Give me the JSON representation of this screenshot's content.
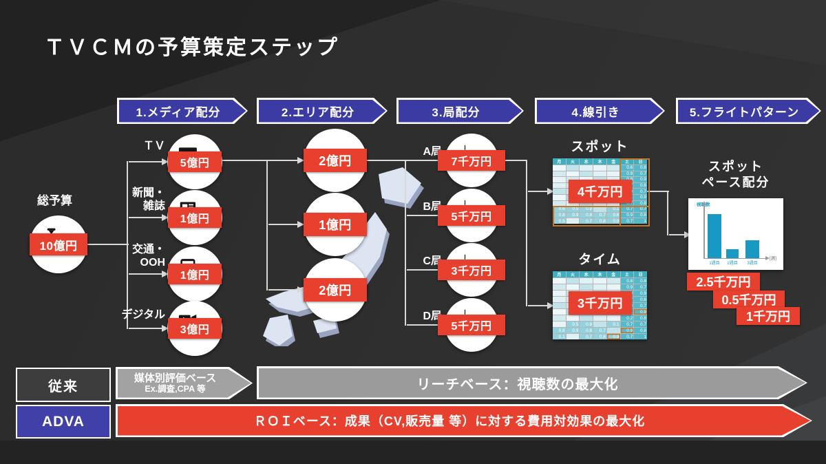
{
  "title": "ＴＶＣＭの予算策定ステップ",
  "steps": [
    "1.メディア配分",
    "2.エリア配分",
    "3.局配分",
    "4.線引き",
    "5.フライトパターン"
  ],
  "budget": {
    "label": "総予算",
    "amount": "10億円",
    "icon": "money-bag-icon"
  },
  "media": [
    {
      "label_lines": [
        "ＴＶ"
      ],
      "amount": "5億円",
      "icon": "tv-icon"
    },
    {
      "label_lines": [
        "新聞・",
        "雑誌"
      ],
      "amount": "1億円",
      "icon": "newspaper-icon"
    },
    {
      "label_lines": [
        "交通・",
        "OOH"
      ],
      "amount": "1億円",
      "icon": "bus-icon"
    },
    {
      "label_lines": [
        "デジタル"
      ],
      "amount": "3億円",
      "icon": "digital-icon"
    }
  ],
  "areas": [
    {
      "amount": "2億円"
    },
    {
      "amount": "1億円"
    },
    {
      "amount": "2億円"
    }
  ],
  "stations": [
    {
      "label": "A局",
      "amount": "7千万円",
      "icon": "broadcast-tower-icon"
    },
    {
      "label": "B局",
      "amount": "5千万円",
      "icon": "broadcast-tower-icon"
    },
    {
      "label": "C局",
      "amount": "3千万円",
      "icon": "broadcast-tower-icon"
    },
    {
      "label": "D局",
      "amount": "5千万円",
      "icon": "broadcast-tower-icon"
    }
  ],
  "spot_table": {
    "title": "スポット",
    "amount": "4千万円",
    "headers": [
      "月",
      "火",
      "水",
      "木",
      "金",
      "土",
      "日"
    ],
    "rows": [
      [
        "",
        "",
        "",
        "",
        "",
        "0.6",
        "0.8"
      ],
      [
        "",
        "",
        "",
        "",
        "",
        "0.9",
        "0.7"
      ],
      [
        "",
        "",
        "",
        "",
        "",
        "0.8",
        "0.9"
      ],
      [
        "",
        "",
        "",
        "",
        "",
        "0.7",
        "0.8"
      ],
      [
        "",
        "",
        "",
        "",
        "",
        "0.9",
        "0.7"
      ],
      [
        "",
        "",
        "",
        "",
        "",
        "1",
        "0.9"
      ],
      [
        "",
        "",
        "",
        "",
        "",
        "0.7",
        "0.8"
      ],
      [
        "0.6",
        "0.5",
        "0.8",
        "",
        "0.1",
        "0.7",
        "0.7"
      ],
      [
        "0.8",
        "0.9",
        "0.8",
        "0.7",
        "0.6",
        "0.9",
        "0.8"
      ],
      [
        "0.5",
        "",
        "0.7",
        "0.8",
        "0.9",
        "0.7",
        "1"
      ]
    ]
  },
  "time_table": {
    "title": "タイム",
    "amount": "3千万円",
    "headers": [
      "月",
      "火",
      "水",
      "木",
      "金",
      "土",
      "日"
    ],
    "rows": [
      [
        "",
        "",
        "",
        "",
        "",
        "0.8",
        "0.8"
      ],
      [
        "",
        "",
        "",
        "",
        "",
        "0.9",
        "0.7"
      ],
      [
        "",
        "",
        "",
        "",
        "",
        "0.8",
        "0.9"
      ],
      [
        "",
        "",
        "",
        "",
        "",
        "0.7",
        "0.8"
      ],
      [
        "",
        "",
        "",
        "",
        "",
        "0.9",
        "0.7"
      ],
      [
        "",
        "",
        "",
        "",
        "",
        "1",
        "0.9"
      ],
      [
        "",
        "",
        "",
        "",
        "",
        "0.2",
        "0.8"
      ],
      [
        "",
        "0.5",
        "0.8",
        "",
        "0.1",
        "0.7",
        "0.7"
      ],
      [
        "0.8",
        "0.9",
        "0.8",
        "0.7",
        "",
        "0.9",
        "0.8"
      ],
      [
        "0.1",
        "",
        "0.7",
        "0.8",
        "0.9",
        "0.7",
        "1"
      ]
    ],
    "highlight_cells": [
      [
        5,
        6
      ],
      [
        8,
        5
      ],
      [
        9,
        4
      ]
    ]
  },
  "pace": {
    "title_lines": [
      "スポット",
      "ペース配分"
    ],
    "badges": [
      "2.5千万円",
      "0.5千万円",
      "1千万円"
    ]
  },
  "chart_data": {
    "type": "bar",
    "title": "スポット ペース配分",
    "categories": [
      "1週目",
      "2週目",
      "3週目"
    ],
    "values": [
      2.5,
      0.5,
      1
    ],
    "unit": "千万円",
    "ylabel": "視聴数",
    "xlabel": "[週]",
    "ylim": [
      0,
      2.7
    ],
    "grid": false,
    "legend": "none",
    "bar_color": "#1899c4"
  },
  "legacy": {
    "label": "従来",
    "chevron_lines": [
      "媒体別評価ベース",
      "Ex.調査,CPA 等"
    ],
    "bar_text": "リーチベース：視聴数の最大化"
  },
  "adva": {
    "label": "ADVA",
    "bar_text": "ＲＯＩベース：成果（CV,販売量 等）に対する費用対効果の最大化"
  },
  "colors": {
    "badge_red": "#e8402f",
    "step_blue": "#3b3ba3",
    "adva_blue": "#4040a8",
    "gray_bar": "#9b9b9b",
    "table_header_teal": "#3fafbf",
    "highlight_orange": "#c4762a",
    "bar_blue": "#1899c4",
    "map_fill": "#dde4f2"
  }
}
